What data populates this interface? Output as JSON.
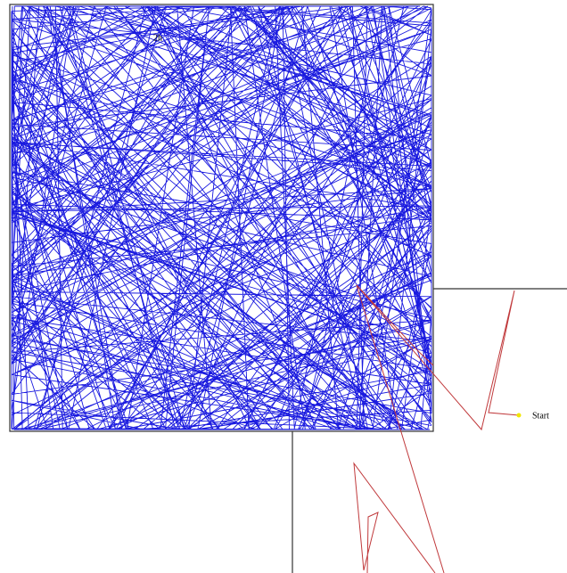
{
  "labels": {
    "corner": "2h",
    "start": "Start"
  }
}
